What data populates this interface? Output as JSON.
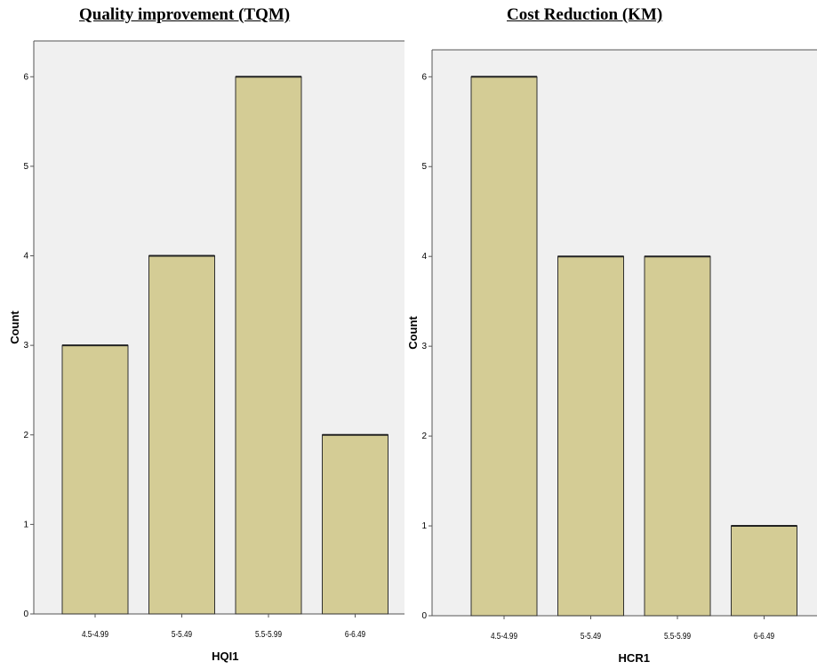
{
  "colors": {
    "bar_fill": "#d4cc95",
    "bar_stroke": "#2f2f2f",
    "plot_bg": "#f0f0f0"
  },
  "chart_data": [
    {
      "type": "bar",
      "title": "Quality improvement (TQM)",
      "xlabel": "HQI1",
      "ylabel": "Count",
      "categories": [
        "4.5-4.99",
        "5-5.49",
        "5.5-5.99",
        "6-6.49"
      ],
      "values": [
        3,
        4,
        6,
        2
      ],
      "ylim": [
        0,
        6.4
      ],
      "yticks": [
        "0",
        "1",
        "2",
        "3",
        "4",
        "5",
        "6"
      ],
      "grid": false
    },
    {
      "type": "bar",
      "title": "Cost Reduction (KM)",
      "xlabel": "HCR1",
      "ylabel": "Count",
      "categories": [
        "4.5-4.99",
        "5-5.49",
        "5.5-5.99",
        "6-6.49"
      ],
      "values": [
        6,
        4,
        4,
        1
      ],
      "ylim": [
        0,
        6.3
      ],
      "yticks": [
        "0",
        "1",
        "2",
        "3",
        "4",
        "5",
        "6"
      ],
      "grid": false
    }
  ]
}
